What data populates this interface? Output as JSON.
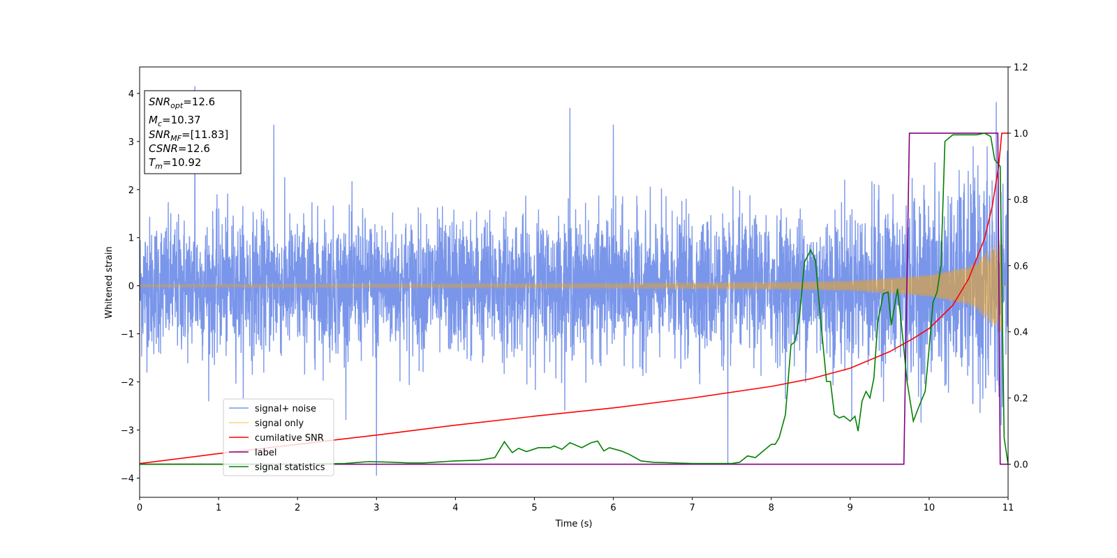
{
  "chart_data": {
    "type": "line",
    "xlabel": "Time (s)",
    "ylabel": "Whitened strain",
    "xlim": [
      0,
      11
    ],
    "ylim": [
      -4.4,
      4.55
    ],
    "y2lim": [
      -0.1,
      1.2
    ],
    "xticks": [
      "0",
      "1",
      "2",
      "3",
      "4",
      "5",
      "6",
      "7",
      "8",
      "9",
      "10",
      "11"
    ],
    "yticks": [
      "−4",
      "−3",
      "−2",
      "−1",
      "0",
      "1",
      "2",
      "3",
      "4"
    ],
    "y2ticks": [
      "0.0",
      "0.2",
      "0.4",
      "0.6",
      "0.8",
      "1.0",
      "1.2"
    ],
    "legend_position": "lower-left",
    "info_box": {
      "lines": [
        {
          "main": "SNR",
          "sub": "opt",
          "rest": "=12.6"
        },
        {
          "main": "M",
          "sub": "c",
          "rest": "=10.37"
        },
        {
          "main": "SNR",
          "sub": "MF",
          "rest": "=[11.83]"
        },
        {
          "main": "CSNR",
          "sub": "",
          "rest": "=12.6"
        },
        {
          "main": "T",
          "sub": "m",
          "rest": "=10.92"
        }
      ]
    },
    "series": [
      {
        "name": "signal+ noise",
        "color": "#4169e1",
        "axis": "left",
        "kind": "noisy",
        "amplitude_envelope": {
          "x": [
            0,
            8,
            9,
            10,
            10.5,
            10.92
          ],
          "y": [
            0.7,
            0.7,
            0.8,
            0.9,
            1.0,
            1.1
          ]
        },
        "peaks": {
          "x": [
            0.7,
            1.7,
            3.0,
            5.45,
            6.0,
            7.45,
            10.85
          ],
          "y": [
            4.15,
            3.35,
            -3.95,
            3.7,
            3.35,
            -3.72,
            3.82
          ]
        }
      },
      {
        "name": "signal only",
        "color": "#ffa500",
        "axis": "left",
        "kind": "chirp",
        "amplitude_envelope": {
          "x": [
            0,
            6,
            8,
            9,
            10,
            10.5,
            10.8,
            10.92
          ],
          "y": [
            0.03,
            0.05,
            0.07,
            0.1,
            0.22,
            0.4,
            0.8,
            1.0
          ]
        }
      },
      {
        "name": "cumilative SNR",
        "color": "#ff0000",
        "axis": "right",
        "x": [
          0,
          1,
          2,
          3,
          4,
          5,
          6,
          7,
          8,
          8.5,
          9,
          9.5,
          9.8,
          10,
          10.3,
          10.5,
          10.7,
          10.8,
          10.88,
          10.92,
          11
        ],
        "y": [
          0.002,
          0.032,
          0.06,
          0.088,
          0.118,
          0.145,
          0.17,
          0.2,
          0.235,
          0.258,
          0.29,
          0.34,
          0.38,
          0.41,
          0.48,
          0.56,
          0.68,
          0.78,
          0.9,
          1.0,
          1.0
        ]
      },
      {
        "name": "label",
        "color": "#800080",
        "axis": "right",
        "x": [
          0,
          9.68,
          9.75,
          10.87,
          10.9,
          11
        ],
        "y": [
          0,
          0,
          1,
          1,
          0,
          0
        ]
      },
      {
        "name": "signal statistics",
        "color": "#008000",
        "axis": "right",
        "x": [
          0,
          1,
          2,
          2.6,
          2.9,
          3.2,
          3.4,
          3.6,
          4,
          4.3,
          4.5,
          4.62,
          4.72,
          4.8,
          4.9,
          5.05,
          5.2,
          5.25,
          5.35,
          5.45,
          5.6,
          5.72,
          5.8,
          5.88,
          5.95,
          6.1,
          6.2,
          6.35,
          6.5,
          7,
          7.5,
          7.6,
          7.7,
          7.8,
          7.9,
          8.0,
          8.05,
          8.1,
          8.18,
          8.25,
          8.3,
          8.36,
          8.42,
          8.5,
          8.56,
          8.62,
          8.7,
          8.75,
          8.8,
          8.86,
          8.92,
          9.0,
          9.06,
          9.1,
          9.15,
          9.2,
          9.25,
          9.3,
          9.35,
          9.42,
          9.48,
          9.52,
          9.6,
          9.65,
          9.72,
          9.8,
          9.88,
          9.95,
          10.0,
          10.05,
          10.1,
          10.15,
          10.2,
          10.3,
          10.5,
          10.6,
          10.7,
          10.78,
          10.83,
          10.9,
          10.95,
          11
        ],
        "y": [
          0,
          0,
          0,
          0.002,
          0.008,
          0.006,
          0.004,
          0.004,
          0.01,
          0.012,
          0.02,
          0.068,
          0.035,
          0.048,
          0.038,
          0.05,
          0.05,
          0.055,
          0.045,
          0.065,
          0.05,
          0.065,
          0.07,
          0.04,
          0.05,
          0.04,
          0.03,
          0.01,
          0.006,
          0.002,
          0.002,
          0.006,
          0.025,
          0.02,
          0.04,
          0.06,
          0.06,
          0.08,
          0.15,
          0.36,
          0.37,
          0.45,
          0.61,
          0.647,
          0.615,
          0.45,
          0.25,
          0.25,
          0.15,
          0.14,
          0.145,
          0.13,
          0.145,
          0.1,
          0.19,
          0.22,
          0.2,
          0.26,
          0.43,
          0.515,
          0.52,
          0.42,
          0.53,
          0.42,
          0.25,
          0.13,
          0.18,
          0.22,
          0.35,
          0.49,
          0.52,
          0.6,
          0.975,
          0.995,
          0.995,
          0.995,
          1.0,
          0.99,
          0.92,
          0.9,
          0.08,
          0.0
        ]
      }
    ]
  }
}
